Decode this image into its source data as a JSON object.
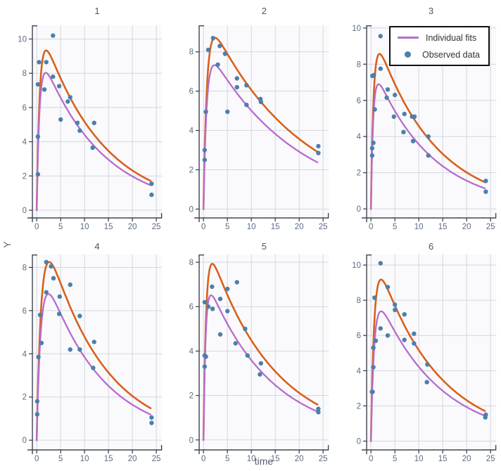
{
  "figure": {
    "x_label": "time",
    "y_label": "Y"
  },
  "colors": {
    "background": "#ffffff",
    "plot_background": "#fafafd",
    "grid": "#d4d6de",
    "axis_line": "#3f4650",
    "tick_label": "#5b6b80",
    "title": "#4a5568",
    "axis_title": "#555f6e",
    "orange_fit": "#d9611c",
    "individual_fit": "#b76ccb",
    "observed": "#4a80ab",
    "legend_border": "#111111",
    "legend_background": "#ffffff",
    "legend_text": "#333333"
  },
  "legend": {
    "items": [
      {
        "label": "Individual fits",
        "marker": "line",
        "color": "#b76ccb"
      },
      {
        "label": "Observed data",
        "marker": "dot",
        "color": "#4a80ab"
      }
    ]
  },
  "curve_model": "y(t) = A * (exp(-ke*t) - exp(-ka*t)), t in hours 0..24",
  "chart_data": [
    {
      "type": "scatter",
      "title": "1",
      "xlim": [
        -0.9,
        26.2
      ],
      "ylim": [
        -0.45,
        10.8
      ],
      "xticks": [
        0,
        5,
        10,
        15,
        20,
        25
      ],
      "yticks": [
        0,
        2,
        4,
        6,
        8,
        10
      ],
      "observed": {
        "x": [
          0.25,
          0.25,
          0.25,
          0.5,
          1.6,
          2,
          3.4,
          3.4,
          4.7,
          5,
          6.5,
          7,
          8.5,
          9,
          11.7,
          12,
          24,
          24
        ],
        "y": [
          2.1,
          4.3,
          7.35,
          8.65,
          7.05,
          8.65,
          7.8,
          10.2,
          7.25,
          5.3,
          6.35,
          6.6,
          5.1,
          4.65,
          3.65,
          5.1,
          1.55,
          0.9
        ]
      },
      "curves": [
        {
          "name": "orange_fit",
          "color": "#d9611c",
          "A": 11.5,
          "ka": 1.6,
          "ke": 0.08,
          "peak_t": 2.0,
          "peak_y": 9.3,
          "y_at_24": 1.7
        },
        {
          "name": "individual_fit",
          "color": "#b76ccb",
          "A": 9.8,
          "ka": 1.7,
          "ke": 0.08,
          "peak_t": 1.9,
          "peak_y": 8.0,
          "y_at_24": 1.45
        }
      ]
    },
    {
      "type": "scatter",
      "title": "2",
      "xlim": [
        -0.9,
        26.2
      ],
      "ylim": [
        -0.45,
        9.35
      ],
      "xticks": [
        0,
        5,
        10,
        15,
        20,
        25
      ],
      "yticks": [
        0,
        2,
        4,
        6,
        8
      ],
      "observed": {
        "x": [
          0.25,
          0.25,
          0.5,
          1,
          2,
          3,
          3.4,
          4.5,
          5,
          7,
          7,
          9,
          9,
          11.9,
          12,
          24,
          24
        ],
        "y": [
          3.0,
          2.5,
          4.95,
          8.1,
          8.7,
          7.35,
          8.3,
          7.9,
          4.95,
          6.65,
          6.2,
          6.3,
          5.3,
          5.6,
          5.45,
          3.2,
          2.85
        ]
      },
      "curves": [
        {
          "name": "orange_fit",
          "color": "#d9611c",
          "A": 10.3,
          "ka": 1.4,
          "ke": 0.053,
          "peak_t": 2.4,
          "peak_y": 8.7,
          "y_at_24": 2.9
        },
        {
          "name": "individual_fit",
          "color": "#b76ccb",
          "A": 8.6,
          "ka": 1.5,
          "ke": 0.054,
          "peak_t": 2.3,
          "peak_y": 7.3,
          "y_at_24": 2.35
        }
      ]
    },
    {
      "type": "scatter",
      "title": "3",
      "xlim": [
        -0.9,
        26.2
      ],
      "ylim": [
        -0.5,
        10.15
      ],
      "xticks": [
        0,
        5,
        10,
        15,
        20,
        25
      ],
      "yticks": [
        0,
        2,
        4,
        6,
        8,
        10
      ],
      "observed": {
        "x": [
          0.25,
          0.25,
          0.3,
          0.5,
          0.6,
          0.8,
          2,
          2,
          3.3,
          3.5,
          4.8,
          5,
          6.8,
          7,
          8.6,
          8.8,
          9.1,
          12,
          12,
          24,
          24
        ],
        "y": [
          3.35,
          2.95,
          7.35,
          3.65,
          7.4,
          5.5,
          9.55,
          7.75,
          6.15,
          6.6,
          5.1,
          6.3,
          4.25,
          5.25,
          5.1,
          3.75,
          5.1,
          4.0,
          2.95,
          1.55,
          0.95
        ]
      },
      "curves": [
        {
          "name": "orange_fit",
          "color": "#d9611c",
          "A": 10.4,
          "ka": 1.8,
          "ke": 0.082,
          "peak_t": 1.8,
          "peak_y": 8.6,
          "y_at_24": 1.45
        },
        {
          "name": "individual_fit",
          "color": "#b76ccb",
          "A": 8.2,
          "ka": 2.1,
          "ke": 0.083,
          "peak_t": 1.6,
          "peak_y": 6.9,
          "y_at_24": 1.1
        }
      ]
    },
    {
      "type": "scatter",
      "title": "4",
      "xlim": [
        -0.9,
        26.2
      ],
      "ylim": [
        -0.45,
        8.6
      ],
      "xticks": [
        0,
        5,
        10,
        15,
        20,
        25
      ],
      "yticks": [
        0,
        2,
        4,
        6,
        8
      ],
      "observed": {
        "x": [
          0.1,
          0.1,
          0.35,
          0.7,
          1,
          2,
          2,
          3,
          3.5,
          4.7,
          4.8,
          7,
          7,
          9,
          9,
          11.8,
          12,
          24,
          24
        ],
        "y": [
          1.8,
          1.2,
          3.85,
          5.8,
          4.5,
          6.85,
          8.25,
          8.05,
          7.5,
          5.85,
          6.65,
          7.2,
          4.2,
          5.75,
          4.2,
          3.35,
          4.55,
          1.05,
          0.8
        ]
      },
      "curves": [
        {
          "name": "orange_fit",
          "color": "#d9611c",
          "A": 11.2,
          "ka": 1.05,
          "ke": 0.085,
          "peak_t": 2.6,
          "peak_y": 8.25,
          "y_at_24": 1.45
        },
        {
          "name": "individual_fit",
          "color": "#b76ccb",
          "A": 9.0,
          "ka": 1.15,
          "ke": 0.085,
          "peak_t": 2.45,
          "peak_y": 6.8,
          "y_at_24": 1.15
        }
      ]
    },
    {
      "type": "scatter",
      "title": "5",
      "xlim": [
        -0.9,
        26.2
      ],
      "ylim": [
        -0.45,
        8.35
      ],
      "xticks": [
        0,
        5,
        10,
        15,
        20,
        25
      ],
      "yticks": [
        0,
        2,
        4,
        6,
        8
      ],
      "observed": {
        "x": [
          0.25,
          0.25,
          0.25,
          0.5,
          1,
          1.8,
          1.9,
          3.5,
          3.5,
          5,
          5,
          6.7,
          7,
          8.7,
          9.2,
          11.8,
          12,
          24,
          24
        ],
        "y": [
          6.2,
          3.8,
          3.3,
          3.75,
          6.0,
          6.9,
          5.9,
          6.35,
          4.75,
          6.8,
          5.8,
          4.35,
          7.1,
          5.0,
          3.8,
          2.95,
          3.45,
          1.4,
          1.25
        ]
      },
      "curves": [
        {
          "name": "orange_fit",
          "color": "#d9611c",
          "A": 9.5,
          "ka": 1.8,
          "ke": 0.075,
          "peak_t": 1.85,
          "peak_y": 7.9,
          "y_at_24": 1.55
        },
        {
          "name": "individual_fit",
          "color": "#b76ccb",
          "A": 7.6,
          "ka": 2.2,
          "ke": 0.075,
          "peak_t": 1.6,
          "peak_y": 6.5,
          "y_at_24": 1.25
        }
      ]
    },
    {
      "type": "scatter",
      "title": "6",
      "xlim": [
        -0.9,
        26.2
      ],
      "ylim": [
        -0.5,
        10.6
      ],
      "xticks": [
        0,
        5,
        10,
        15,
        20,
        25
      ],
      "yticks": [
        0,
        2,
        4,
        6,
        8,
        10
      ],
      "observed": {
        "x": [
          0.2,
          0.35,
          0.5,
          0.5,
          0.75,
          1,
          2,
          2,
          3.5,
          3.5,
          5,
          5,
          7,
          7,
          9,
          9,
          11.7,
          11.8,
          23.9,
          24
        ],
        "y": [
          2.8,
          2.8,
          5.3,
          4.2,
          8.15,
          5.7,
          10.1,
          6.4,
          8.75,
          6.0,
          7.75,
          7.45,
          7.2,
          5.75,
          6.1,
          5.55,
          3.35,
          4.35,
          1.35,
          1.5
        ]
      },
      "curves": [
        {
          "name": "orange_fit",
          "color": "#d9611c",
          "A": 11.5,
          "ka": 1.45,
          "ke": 0.08,
          "peak_t": 2.1,
          "peak_y": 9.2,
          "y_at_24": 1.7
        },
        {
          "name": "individual_fit",
          "color": "#b76ccb",
          "A": 9.2,
          "ka": 1.45,
          "ke": 0.078,
          "peak_t": 2.1,
          "peak_y": 7.4,
          "y_at_24": 1.4
        }
      ]
    }
  ]
}
